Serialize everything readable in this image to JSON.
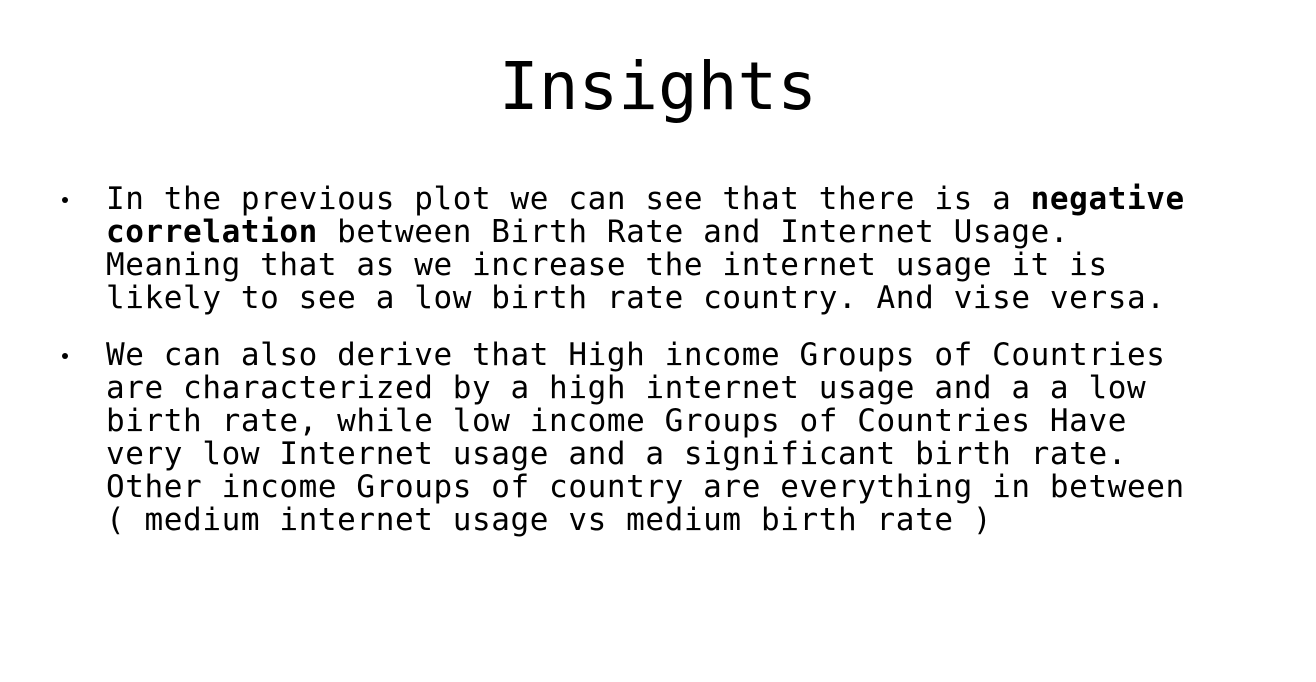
{
  "slide": {
    "title": "Insights",
    "bullets": [
      {
        "pre": "In the previous plot we can see that there is a ",
        "bold": "negative\ncorrelation",
        "post": " between Birth Rate and Internet Usage.\nMeaning that as we increase the internet usage it is\nlikely to see a low birth rate country. And vise versa."
      },
      {
        "text": "We can also derive that High income Groups of Countries\nare characterized by a high internet usage and a a low\nbirth rate, while low income Groups of Countries Have\nvery low Internet usage and a significant birth rate.\nOther income Groups of country are everything in between\n( medium internet usage vs medium birth rate )"
      }
    ]
  }
}
